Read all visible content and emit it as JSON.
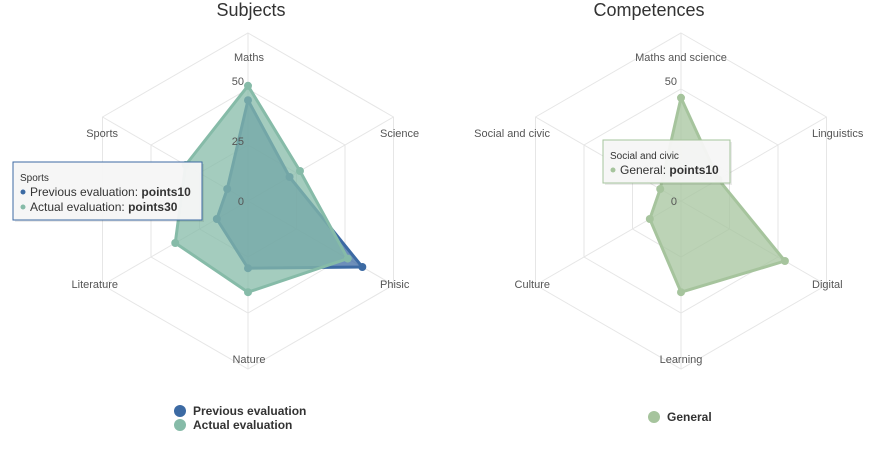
{
  "chart_data": [
    {
      "type": "radar",
      "title": "Subjects",
      "categories": [
        "Maths",
        "Science",
        "Phisic",
        "Nature",
        "Literature",
        "Sports"
      ],
      "ticks": [
        0,
        25,
        50
      ],
      "ylim": [
        0,
        70
      ],
      "series": [
        {
          "name": "Previous evaluation",
          "color": "#3c6aa3",
          "values": [
            42,
            20,
            55,
            28,
            15,
            10
          ]
        },
        {
          "name": "Actual evaluation",
          "color": "#86bba8",
          "values": [
            48,
            25,
            48,
            38,
            35,
            30
          ]
        }
      ],
      "legend": "bottom",
      "tooltip": {
        "header": "Sports",
        "rows": [
          {
            "label": "Previous evaluation",
            "value": "points10"
          },
          {
            "label": "Actual evaluation",
            "value": "points30"
          }
        ]
      }
    },
    {
      "type": "radar",
      "title": "Competences",
      "categories": [
        "Maths and science",
        "Linguistics",
        "Digital",
        "Learning",
        "Culture",
        "Social and civic"
      ],
      "ticks": [
        0,
        50
      ],
      "ylim": [
        0,
        70
      ],
      "series": [
        {
          "name": "General",
          "color": "#a6c49d",
          "values": [
            43,
            18,
            50,
            38,
            15,
            10
          ]
        }
      ],
      "legend": "bottom",
      "tooltip": {
        "header": "Social and civic",
        "rows": [
          {
            "label": "General",
            "value": "points10"
          }
        ]
      }
    }
  ]
}
